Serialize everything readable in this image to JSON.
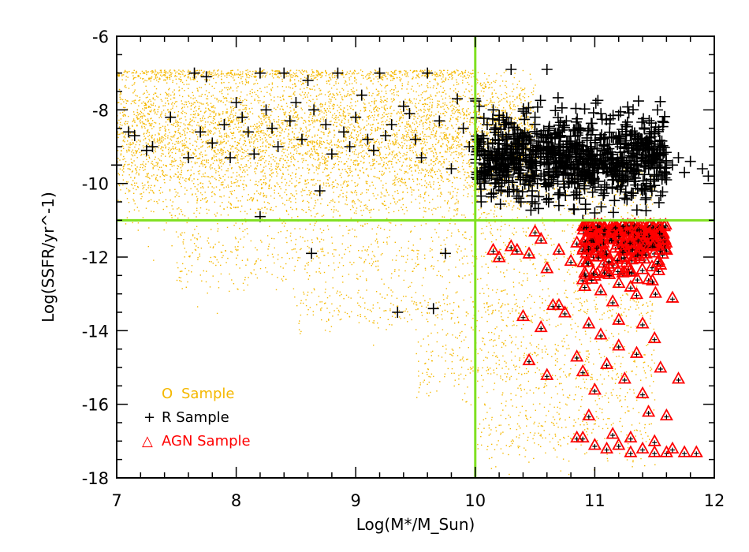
{
  "chart_data": {
    "type": "scatter",
    "title": "",
    "xlabel": "Log(M*/M_Sun)",
    "ylabel": "Log(SSFR/yr^-1)",
    "xlim": [
      7,
      12
    ],
    "ylim": [
      -18,
      -6
    ],
    "x_ticks": [
      "7",
      "8",
      "9",
      "10",
      "11",
      "12"
    ],
    "y_ticks": [
      "-18",
      "-16",
      "-14",
      "-12",
      "-10",
      "-8",
      "-6"
    ],
    "grid": false,
    "reference_lines": {
      "x": 10,
      "y": -11,
      "color": "#7fe020"
    },
    "legend": {
      "placement": "bottom-left",
      "entries": [
        {
          "symbol": "O",
          "label": "Sample",
          "color": "#f5b800"
        },
        {
          "symbol": "+",
          "label": "R Sample",
          "color": "#000000"
        },
        {
          "symbol": "△",
          "label": "AGN Sample",
          "color": "#ff0000"
        }
      ]
    },
    "series": [
      {
        "name": "O Sample",
        "marker": "dot",
        "color": "#f5b800",
        "description_regions": [
          {
            "x": [
              7.0,
              10.5
            ],
            "y_center": -8.6,
            "y_spread": 0.9,
            "weight": 0.55
          },
          {
            "x": [
              7.0,
              10.0
            ],
            "y_center": -7.0,
            "y_spread": 0.1,
            "weight": 0.08
          },
          {
            "x": [
              7.0,
              11.5
            ],
            "y_center": -10.2,
            "y_spread": 0.6,
            "weight": 0.12
          },
          {
            "x": [
              7.5,
              11.0
            ],
            "y_center": -12.0,
            "y_spread": 0.5,
            "weight": 0.07
          },
          {
            "x": [
              8.5,
              11.5
            ],
            "y_center": -13.4,
            "y_spread": 0.3,
            "weight": 0.05
          },
          {
            "x": [
              9.5,
              11.5
            ],
            "y_center": -14.8,
            "y_spread": 0.5,
            "weight": 0.05
          },
          {
            "x": [
              10.0,
              11.5
            ],
            "y_center": -16.5,
            "y_spread": 0.7,
            "weight": 0.04
          }
        ]
      },
      {
        "name": "R Sample",
        "marker": "plus",
        "color": "#000000",
        "points": [
          [
            7.0,
            -9.5
          ],
          [
            7.1,
            -8.6
          ],
          [
            7.15,
            -8.7
          ],
          [
            7.25,
            -9.1
          ],
          [
            7.3,
            -9.0
          ],
          [
            7.45,
            -8.2
          ],
          [
            7.6,
            -9.3
          ],
          [
            7.65,
            -7.0
          ],
          [
            7.7,
            -8.6
          ],
          [
            7.75,
            -7.1
          ],
          [
            7.8,
            -8.9
          ],
          [
            7.9,
            -8.4
          ],
          [
            7.95,
            -9.3
          ],
          [
            8.0,
            -7.8
          ],
          [
            8.05,
            -8.2
          ],
          [
            8.1,
            -8.6
          ],
          [
            8.15,
            -9.2
          ],
          [
            8.2,
            -10.9
          ],
          [
            8.2,
            -7.0
          ],
          [
            8.25,
            -8.0
          ],
          [
            8.3,
            -8.5
          ],
          [
            8.35,
            -9.0
          ],
          [
            8.4,
            -7.0
          ],
          [
            8.45,
            -8.3
          ],
          [
            8.5,
            -7.8
          ],
          [
            8.55,
            -8.8
          ],
          [
            8.6,
            -7.2
          ],
          [
            8.63,
            -11.9
          ],
          [
            8.65,
            -8.0
          ],
          [
            8.7,
            -10.2
          ],
          [
            8.75,
            -8.4
          ],
          [
            8.8,
            -9.2
          ],
          [
            8.85,
            -7.0
          ],
          [
            8.9,
            -8.6
          ],
          [
            8.95,
            -9.0
          ],
          [
            9.0,
            -8.2
          ],
          [
            9.05,
            -7.6
          ],
          [
            9.1,
            -8.8
          ],
          [
            9.15,
            -9.1
          ],
          [
            9.2,
            -7.0
          ],
          [
            9.25,
            -8.7
          ],
          [
            9.3,
            -8.4
          ],
          [
            9.35,
            -13.5
          ],
          [
            9.4,
            -7.9
          ],
          [
            9.45,
            -8.1
          ],
          [
            9.5,
            -8.8
          ],
          [
            9.55,
            -9.3
          ],
          [
            9.6,
            -7.0
          ],
          [
            9.65,
            -13.4
          ],
          [
            9.7,
            -8.3
          ],
          [
            9.75,
            -11.9
          ],
          [
            9.8,
            -9.6
          ],
          [
            9.85,
            -7.7
          ],
          [
            9.9,
            -8.5
          ],
          [
            9.95,
            -9.0
          ],
          [
            10.0,
            -7.7
          ],
          [
            10.02,
            -8.8
          ],
          [
            10.05,
            -10.5
          ],
          [
            10.1,
            -9.3
          ],
          [
            10.15,
            -8.0
          ],
          [
            10.2,
            -9.7
          ],
          [
            10.25,
            -8.4
          ],
          [
            10.3,
            -6.9
          ],
          [
            10.3,
            -9.0
          ],
          [
            10.35,
            -10.2
          ],
          [
            10.4,
            -8.7
          ],
          [
            10.45,
            -9.4
          ],
          [
            10.5,
            -8.2
          ],
          [
            10.55,
            -9.8
          ],
          [
            10.6,
            -6.9
          ],
          [
            10.6,
            -9.1
          ],
          [
            10.65,
            -10.0
          ],
          [
            10.7,
            -8.6
          ],
          [
            10.75,
            -9.5
          ],
          [
            10.8,
            -8.9
          ],
          [
            10.85,
            -10.3
          ],
          [
            10.9,
            -9.2
          ],
          [
            10.95,
            -8.5
          ],
          [
            11.0,
            -9.7
          ],
          [
            11.05,
            -8.8
          ],
          [
            11.1,
            -10.1
          ],
          [
            11.15,
            -9.3
          ],
          [
            11.2,
            -8.7
          ],
          [
            11.25,
            -10.4
          ],
          [
            11.3,
            -9.6
          ],
          [
            11.35,
            -9.0
          ],
          [
            11.4,
            -10.2
          ],
          [
            11.45,
            -9.4
          ],
          [
            11.5,
            -9.8
          ],
          [
            11.55,
            -9.2
          ],
          [
            11.6,
            -9.9
          ],
          [
            11.65,
            -9.5
          ],
          [
            11.7,
            -9.3
          ],
          [
            11.75,
            -9.7
          ],
          [
            11.8,
            -9.4
          ],
          [
            11.9,
            -9.6
          ],
          [
            11.95,
            -9.8
          ],
          [
            10.1,
            -8.4
          ],
          [
            10.4,
            -9.9
          ],
          [
            10.7,
            -10.6
          ],
          [
            11.0,
            -10.8
          ],
          [
            10.9,
            -11.0
          ]
        ]
      },
      {
        "name": "AGN Sample",
        "marker": "triangle",
        "color": "#ff0000",
        "points": [
          [
            10.15,
            -11.8
          ],
          [
            10.2,
            -12.0
          ],
          [
            10.3,
            -11.7
          ],
          [
            10.35,
            -11.8
          ],
          [
            10.45,
            -11.9
          ],
          [
            10.5,
            -11.3
          ],
          [
            10.55,
            -11.5
          ],
          [
            10.6,
            -12.3
          ],
          [
            10.65,
            -13.3
          ],
          [
            10.7,
            -11.8
          ],
          [
            10.75,
            -13.5
          ],
          [
            10.8,
            -12.1
          ],
          [
            10.85,
            -11.6
          ],
          [
            10.9,
            -12.6
          ],
          [
            10.95,
            -13.8
          ],
          [
            11.0,
            -11.4
          ],
          [
            11.05,
            -12.9
          ],
          [
            11.1,
            -11.9
          ],
          [
            11.15,
            -13.2
          ],
          [
            11.2,
            -11.5
          ],
          [
            11.25,
            -12.4
          ],
          [
            11.3,
            -11.8
          ],
          [
            11.35,
            -13.0
          ],
          [
            11.4,
            -11.3
          ],
          [
            11.45,
            -12.6
          ],
          [
            11.5,
            -11.7
          ],
          [
            11.55,
            -12.2
          ],
          [
            11.6,
            -11.8
          ],
          [
            11.65,
            -13.1
          ],
          [
            10.4,
            -13.6
          ],
          [
            10.45,
            -14.8
          ],
          [
            10.55,
            -13.9
          ],
          [
            10.6,
            -15.2
          ],
          [
            10.7,
            -13.3
          ],
          [
            10.85,
            -14.7
          ],
          [
            10.9,
            -15.1
          ],
          [
            10.95,
            -16.3
          ],
          [
            11.0,
            -15.6
          ],
          [
            11.05,
            -14.1
          ],
          [
            11.1,
            -14.9
          ],
          [
            11.15,
            -16.8
          ],
          [
            11.2,
            -14.4
          ],
          [
            11.25,
            -15.3
          ],
          [
            11.3,
            -16.9
          ],
          [
            11.35,
            -14.6
          ],
          [
            11.4,
            -15.7
          ],
          [
            11.45,
            -16.2
          ],
          [
            11.5,
            -17.0
          ],
          [
            11.55,
            -15.0
          ],
          [
            11.6,
            -16.3
          ],
          [
            11.7,
            -15.3
          ],
          [
            11.75,
            -17.3
          ],
          [
            11.85,
            -17.3
          ],
          [
            10.85,
            -16.9
          ],
          [
            10.9,
            -16.9
          ],
          [
            11.0,
            -17.1
          ],
          [
            11.1,
            -17.2
          ],
          [
            11.2,
            -17.1
          ],
          [
            11.3,
            -17.3
          ],
          [
            11.4,
            -17.2
          ],
          [
            11.5,
            -17.3
          ],
          [
            11.6,
            -17.3
          ],
          [
            11.65,
            -17.2
          ],
          [
            11.3,
            -12.8
          ],
          [
            11.4,
            -13.8
          ],
          [
            11.5,
            -14.2
          ],
          [
            11.2,
            -13.7
          ],
          [
            11.0,
            -12.5
          ],
          [
            10.9,
            -11.6
          ],
          [
            11.3,
            -11.5
          ],
          [
            11.45,
            -11.4
          ],
          [
            11.55,
            -11.6
          ]
        ]
      }
    ]
  }
}
